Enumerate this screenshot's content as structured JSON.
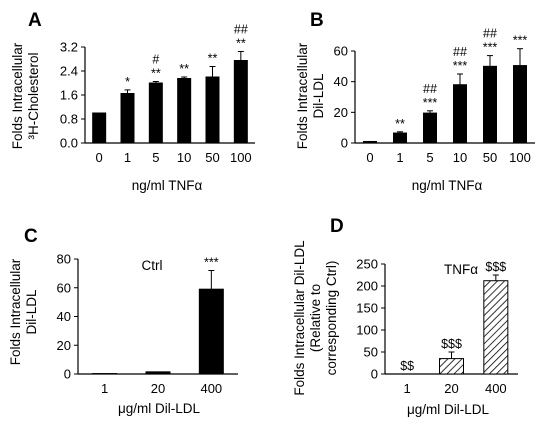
{
  "colors": {
    "bar_fill": "#000000",
    "hatch": "#000000",
    "axis": "#000000",
    "background": "#ffffff"
  },
  "chart_data": [
    {
      "panel": "A",
      "type": "bar",
      "categories": [
        "0",
        "1",
        "5",
        "10",
        "50",
        "100"
      ],
      "values": [
        1.0,
        1.65,
        2.0,
        2.15,
        2.2,
        2.75
      ],
      "errors": [
        0.02,
        0.12,
        0.05,
        0.05,
        0.35,
        0.3
      ],
      "ylim": [
        0,
        3.2
      ],
      "yticks": [
        "0.0",
        "0.8",
        "1.6",
        "2.4",
        "3.2"
      ],
      "ytick_values": [
        0,
        0.8,
        1.6,
        2.4,
        3.2
      ],
      "xlabel": "ng/ml TNFα",
      "ylabel_lines": [
        "Folds Intracellular",
        "³H-Cholesterol"
      ],
      "significance_upper": [
        "",
        "",
        "#",
        "",
        "",
        "##"
      ],
      "significance_lower": [
        "",
        "*",
        "**",
        "**",
        "**",
        "**"
      ],
      "bar_style": "solid"
    },
    {
      "panel": "B",
      "type": "bar",
      "categories": [
        "0",
        "1",
        "5",
        "10",
        "50",
        "100"
      ],
      "values": [
        1.0,
        6.5,
        19.5,
        38.0,
        50.0,
        50.5
      ],
      "errors": [
        0.2,
        0.8,
        1.5,
        7.0,
        7.0,
        11.0
      ],
      "ylim": [
        0,
        60
      ],
      "yticks": [
        "0",
        "20",
        "40",
        "60"
      ],
      "ytick_values": [
        0,
        20,
        40,
        60
      ],
      "xlabel": "ng/ml TNFα",
      "ylabel_lines": [
        "Folds Intracellular",
        "Dil-LDL"
      ],
      "significance_upper": [
        "",
        "",
        "##",
        "##",
        "##",
        ""
      ],
      "significance_lower": [
        "",
        "**",
        "***",
        "***",
        "***",
        "***"
      ],
      "bar_style": "solid"
    },
    {
      "panel": "C",
      "type": "bar",
      "categories": [
        "1",
        "20",
        "400"
      ],
      "values": [
        0.3,
        1.5,
        59.0
      ],
      "errors": [
        0.1,
        0.5,
        13.0
      ],
      "ylim": [
        0,
        80
      ],
      "yticks": [
        "0",
        "20",
        "40",
        "60",
        "80"
      ],
      "ytick_values": [
        0,
        20,
        40,
        60,
        80
      ],
      "xlabel": "μg/ml Dil-LDL",
      "ylabel_lines": [
        "Folds Intracellular",
        "Dil-LDL"
      ],
      "annotation": "Ctrl",
      "significance_upper": [
        "",
        "",
        ""
      ],
      "significance_lower": [
        "",
        "",
        "***"
      ],
      "bar_style": "solid"
    },
    {
      "panel": "D",
      "type": "bar",
      "categories": [
        "1",
        "20",
        "400"
      ],
      "values": [
        0,
        35.0,
        212.0
      ],
      "errors": [
        0,
        15.0,
        13.0
      ],
      "ylim": [
        0,
        250
      ],
      "yticks": [
        "0",
        "50",
        "100",
        "150",
        "200",
        "250"
      ],
      "ytick_values": [
        0,
        50,
        100,
        150,
        200,
        250
      ],
      "xlabel": "μg/ml Dil-LDL",
      "ylabel_lines": [
        "Folds Intracellular Dil-LDL",
        "(Relative to",
        "corresponding Ctrl)"
      ],
      "annotation": "TNFα",
      "significance_upper": [
        "",
        "",
        ""
      ],
      "significance_lower": [
        "$$",
        "$$$",
        "$$$"
      ],
      "bar_style": "hatched"
    }
  ]
}
